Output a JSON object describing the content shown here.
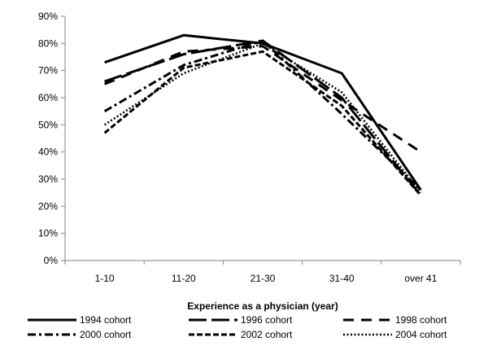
{
  "chart_data": {
    "type": "line",
    "title": "",
    "xlabel": "Experience as a physician  (year)",
    "ylabel": "",
    "categories": [
      "1-10",
      "11-20",
      "21-30",
      "31-40",
      "over 41"
    ],
    "ylim": [
      0,
      90
    ],
    "yticks": [
      "0%",
      "10%",
      "20%",
      "30%",
      "40%",
      "50%",
      "60%",
      "70%",
      "80%",
      "90%"
    ],
    "grid": false,
    "legend_position": "bottom",
    "series": [
      {
        "name": "1994 cohort",
        "values": [
          73,
          83,
          80,
          69,
          26
        ],
        "style": "solid",
        "color": "#000000"
      },
      {
        "name": "1996 cohort",
        "values": [
          66,
          76,
          81,
          60,
          24
        ],
        "style": "long-dash",
        "color": "#000000"
      },
      {
        "name": "1998 cohort",
        "values": [
          65,
          77,
          79,
          59,
          40
        ],
        "style": "dash",
        "color": "#000000"
      },
      {
        "name": "2000 cohort",
        "values": [
          55,
          72,
          81,
          54,
          26
        ],
        "style": "dash-dot",
        "color": "#000000"
      },
      {
        "name": "2002 cohort",
        "values": [
          47,
          71,
          77,
          57,
          24
        ],
        "style": "short-dash",
        "color": "#000000"
      },
      {
        "name": "2004 cohort",
        "values": [
          50,
          69,
          80,
          62,
          25
        ],
        "style": "dotted",
        "color": "#000000"
      }
    ]
  }
}
